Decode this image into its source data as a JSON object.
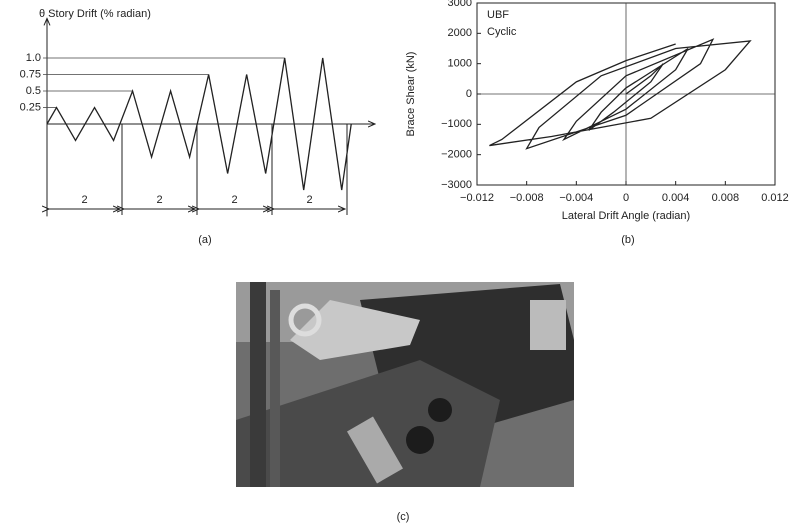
{
  "chart_data": [
    {
      "type": "line",
      "y_label": "θ Story Drift (% radian)",
      "caption": "(a)",
      "x": [
        0,
        1,
        3,
        5,
        7,
        9,
        11,
        13,
        15,
        17,
        19,
        21,
        23,
        25,
        27,
        29,
        31,
        32
      ],
      "values": [
        0,
        0.25,
        -0.25,
        0.25,
        -0.25,
        0.5,
        -0.5,
        0.5,
        -0.5,
        0.75,
        -0.75,
        0.75,
        -0.75,
        1,
        -1,
        1,
        -1,
        0
      ],
      "color": "#222",
      "xlim": [
        0,
        34.5
      ],
      "ylim": [
        -1.4,
        1.6
      ],
      "yticks": [
        0.25,
        0.5,
        0.75,
        {
          "value": 1,
          "label": "1.0"
        }
      ],
      "annotations": [
        "2",
        "2",
        "2",
        "2"
      ]
    },
    {
      "type": "line",
      "caption": "(b)",
      "annotations": [
        "UBF",
        "Cyclic"
      ],
      "x_label": "Lateral Drift Angle (radian)",
      "y_label": "Brace Shear (kN)",
      "x": [
        0,
        0.002,
        0.003,
        0.002,
        -0.001,
        -0.003,
        -0.002,
        0,
        0.005,
        0.004,
        0,
        -0.005,
        -0.004,
        0,
        0.007,
        0.006,
        0,
        -0.008,
        -0.007,
        -0.002,
        0.004,
        0.01,
        0.008,
        0.002,
        -0.006,
        -0.011,
        -0.01,
        -0.004,
        0,
        0.004
      ],
      "values": [
        0,
        600,
        1000,
        400,
        -600,
        -1200,
        -600,
        200,
        1500,
        800,
        -500,
        -1500,
        -900,
        600,
        1800,
        1000,
        -700,
        -1800,
        -1100,
        600,
        1500,
        1750,
        800,
        -800,
        -1400,
        -1700,
        -1500,
        400,
        1100,
        1650
      ],
      "color": "#222",
      "xlim": [
        -0.012,
        0.012
      ],
      "xticks": [
        {
          "value": -0.012,
          "label": "−0.012"
        },
        {
          "value": -0.008,
          "label": "−0.008"
        },
        {
          "value": -0.004,
          "label": "−0.004"
        },
        0,
        0.004,
        0.008,
        0.012
      ],
      "ylim": [
        -3000,
        3000
      ],
      "yticks": [
        {
          "value": -3000,
          "label": "−3000"
        },
        {
          "value": -2000,
          "label": "−2000"
        },
        {
          "value": -1000,
          "label": "−1000"
        },
        0,
        1000,
        2000,
        3000
      ]
    }
  ],
  "photo": {
    "caption": "(c)"
  }
}
